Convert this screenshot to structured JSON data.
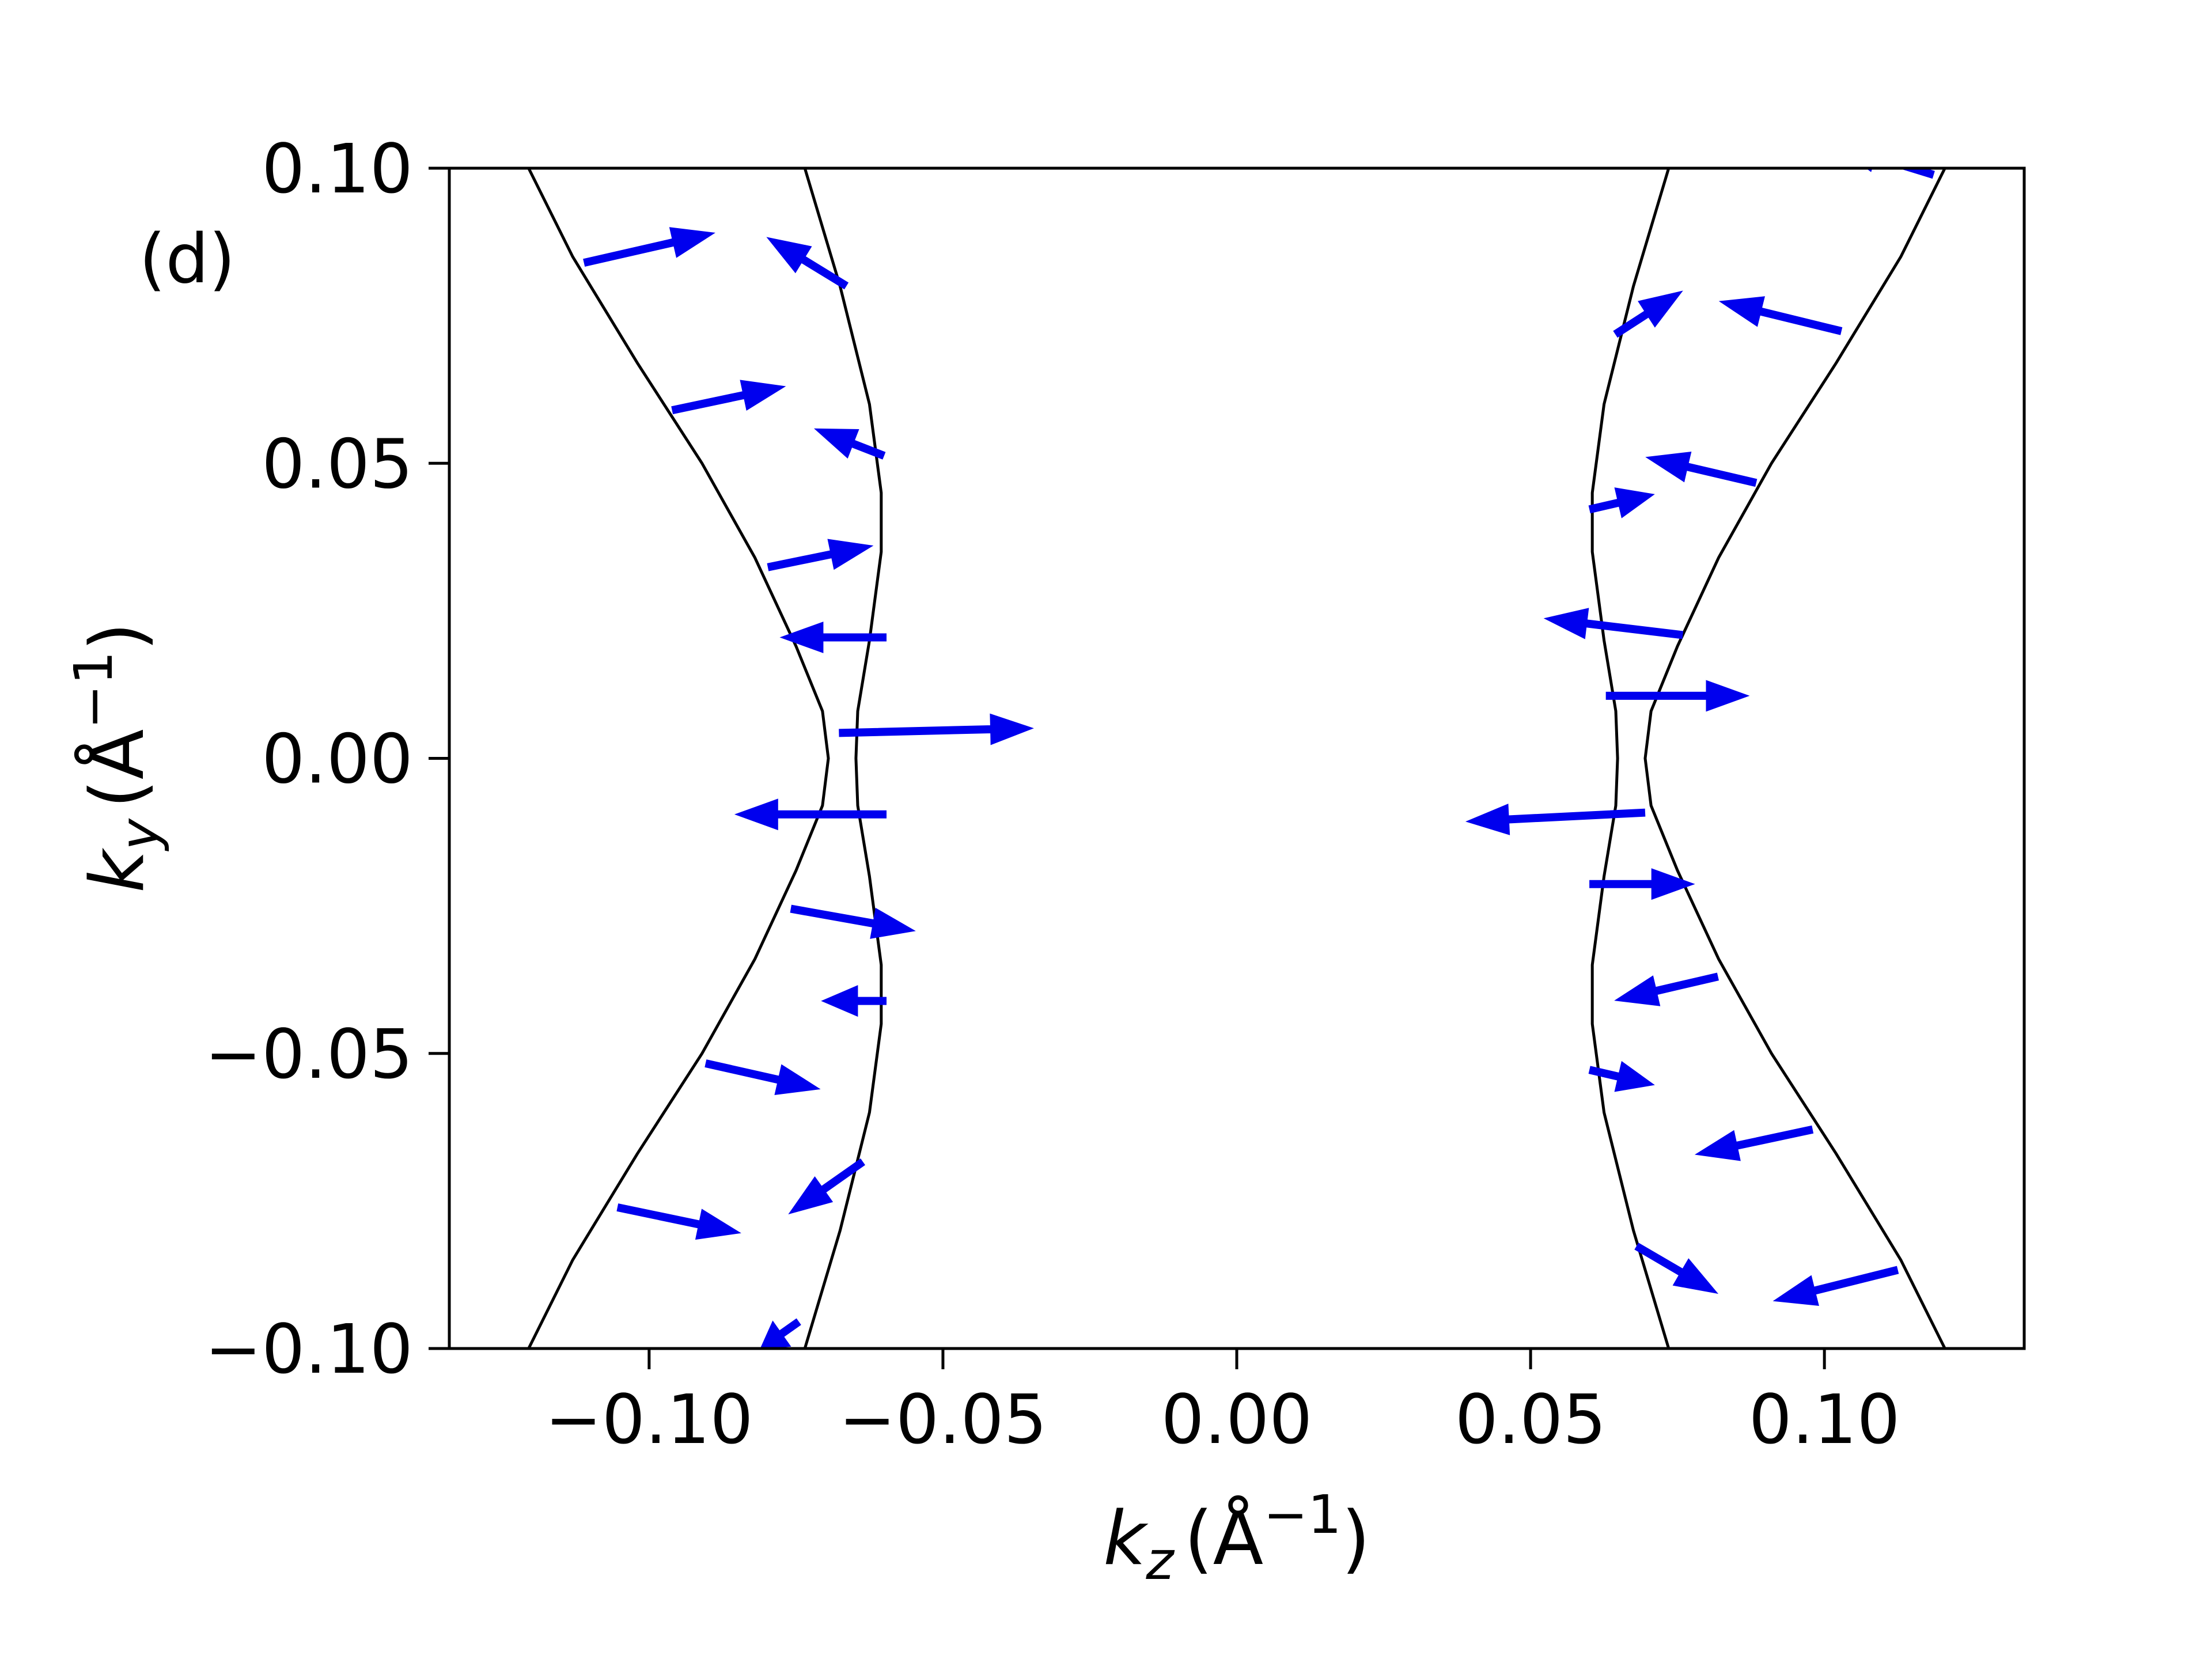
{
  "chart_data": {
    "type": "quiver",
    "panel_label": "(d)",
    "xlim": [
      -0.134,
      0.134
    ],
    "ylim": [
      -0.1,
      0.1
    ],
    "x_ticks": [
      -0.1,
      -0.05,
      0.0,
      0.05,
      0.1
    ],
    "y_ticks": [
      -0.1,
      -0.05,
      0.0,
      0.05,
      0.1
    ],
    "x_tick_labels": [
      "−0.10",
      "−0.05",
      "0.00",
      "0.05",
      "0.10"
    ],
    "y_tick_labels": [
      "−0.10",
      "−0.05",
      "0.00",
      "0.05",
      "0.10"
    ],
    "xlabel": {
      "symbol": "k",
      "subscript": "z",
      "units": "(Å",
      "exponent": "−1",
      "close": ")"
    },
    "ylabel": {
      "symbol": "k",
      "subscript": "y",
      "units": "(Å",
      "exponent": "−1",
      "close": ")"
    },
    "grid": false,
    "curve_color": "#000000",
    "arrow_color": "#0000ee",
    "curves": [
      {
        "name": "left-outer",
        "points": [
          [
            -0.1205,
            0.1
          ],
          [
            -0.113,
            0.085
          ],
          [
            -0.102,
            0.067
          ],
          [
            -0.091,
            0.05
          ],
          [
            -0.082,
            0.034
          ],
          [
            -0.075,
            0.019
          ],
          [
            -0.0705,
            0.008
          ],
          [
            -0.0695,
            0.0
          ],
          [
            -0.0705,
            -0.008
          ],
          [
            -0.075,
            -0.019
          ],
          [
            -0.082,
            -0.034
          ],
          [
            -0.091,
            -0.05
          ],
          [
            -0.102,
            -0.067
          ],
          [
            -0.113,
            -0.085
          ],
          [
            -0.1205,
            -0.1
          ]
        ]
      },
      {
        "name": "left-inner",
        "points": [
          [
            -0.0735,
            0.1
          ],
          [
            -0.0675,
            0.08
          ],
          [
            -0.0625,
            0.06
          ],
          [
            -0.0605,
            0.045
          ],
          [
            -0.0605,
            0.035
          ],
          [
            -0.0625,
            0.02
          ],
          [
            -0.0645,
            0.008
          ],
          [
            -0.0648,
            0.0
          ],
          [
            -0.0645,
            -0.008
          ],
          [
            -0.0625,
            -0.02
          ],
          [
            -0.0605,
            -0.035
          ],
          [
            -0.0605,
            -0.045
          ],
          [
            -0.0625,
            -0.06
          ],
          [
            -0.0675,
            -0.08
          ],
          [
            -0.0735,
            -0.1
          ]
        ]
      },
      {
        "name": "right-inner",
        "points": [
          [
            0.0735,
            0.1
          ],
          [
            0.0675,
            0.08
          ],
          [
            0.0625,
            0.06
          ],
          [
            0.0605,
            0.045
          ],
          [
            0.0605,
            0.035
          ],
          [
            0.0625,
            0.02
          ],
          [
            0.0645,
            0.008
          ],
          [
            0.0648,
            0.0
          ],
          [
            0.0645,
            -0.008
          ],
          [
            0.0625,
            -0.02
          ],
          [
            0.0605,
            -0.035
          ],
          [
            0.0605,
            -0.045
          ],
          [
            0.0625,
            -0.06
          ],
          [
            0.0675,
            -0.08
          ],
          [
            0.0735,
            -0.1
          ]
        ]
      },
      {
        "name": "right-outer",
        "points": [
          [
            0.1205,
            0.1
          ],
          [
            0.113,
            0.085
          ],
          [
            0.102,
            0.067
          ],
          [
            0.091,
            0.05
          ],
          [
            0.082,
            0.034
          ],
          [
            0.075,
            0.019
          ],
          [
            0.0705,
            0.008
          ],
          [
            0.0695,
            0.0
          ],
          [
            0.0705,
            -0.008
          ],
          [
            0.075,
            -0.019
          ],
          [
            0.082,
            -0.034
          ],
          [
            0.091,
            -0.05
          ],
          [
            0.102,
            -0.067
          ],
          [
            0.113,
            -0.085
          ],
          [
            0.1205,
            -0.1
          ]
        ]
      }
    ],
    "arrows": [
      {
        "x": -0.111,
        "y": 0.084,
        "dx": 0.022,
        "dy": 0.005
      },
      {
        "x": -0.096,
        "y": 0.059,
        "dx": 0.019,
        "dy": 0.004
      },
      {
        "x": -0.0797,
        "y": 0.0324,
        "dx": 0.0176,
        "dy": 0.0036
      },
      {
        "x": -0.0597,
        "y": 0.0205,
        "dx": -0.0178,
        "dy": 0.0
      },
      {
        "x": -0.0676,
        "y": 0.0043,
        "dx": 0.0328,
        "dy": 0.0008
      },
      {
        "x": -0.0597,
        "y": -0.0095,
        "dx": -0.0255,
        "dy": 0.0
      },
      {
        "x": -0.0758,
        "y": -0.0255,
        "dx": 0.0209,
        "dy": -0.0037
      },
      {
        "x": -0.0597,
        "y": -0.0411,
        "dx": -0.0108,
        "dy": 0.0
      },
      {
        "x": -0.0903,
        "y": -0.0517,
        "dx": 0.0192,
        "dy": -0.0043
      },
      {
        "x": -0.0637,
        "y": -0.0684,
        "dx": -0.0124,
        "dy": -0.0087
      },
      {
        "x": -0.1053,
        "y": -0.0761,
        "dx": 0.0207,
        "dy": -0.0043
      },
      {
        "x": -0.0746,
        "y": -0.0955,
        "dx": -0.0064,
        "dy": -0.0045
      },
      {
        "x": -0.0665,
        "y": 0.0801,
        "dx": -0.0133,
        "dy": 0.0081
      },
      {
        "x": -0.0601,
        "y": 0.0513,
        "dx": -0.0116,
        "dy": 0.0045
      },
      {
        "x": 0.0645,
        "y": 0.0719,
        "dx": 0.0112,
        "dy": 0.0072
      },
      {
        "x": 0.0601,
        "y": 0.0422,
        "dx": 0.0108,
        "dy": 0.0025
      },
      {
        "x": 0.0758,
        "y": 0.0209,
        "dx": -0.0233,
        "dy": 0.0028
      },
      {
        "x": 0.0629,
        "y": 0.0106,
        "dx": 0.0241,
        "dy": 0.0
      },
      {
        "x": 0.0694,
        "y": -0.0092,
        "dx": -0.0302,
        "dy": -0.0015
      },
      {
        "x": 0.0601,
        "y": -0.0213,
        "dx": 0.0176,
        "dy": 0.0
      },
      {
        "x": 0.0818,
        "y": -0.037,
        "dx": -0.0173,
        "dy": -0.004
      },
      {
        "x": 0.0601,
        "y": -0.0528,
        "dx": 0.0108,
        "dy": -0.0025
      },
      {
        "x": 0.0979,
        "y": -0.0629,
        "dx": -0.0197,
        "dy": -0.0042
      },
      {
        "x": 0.0681,
        "y": -0.0827,
        "dx": 0.0136,
        "dy": -0.0079
      },
      {
        "x": 0.1124,
        "y": -0.0867,
        "dx": -0.0209,
        "dy": -0.0052
      },
      {
        "x": 0.1028,
        "y": 0.0724,
        "dx": -0.0205,
        "dy": 0.005
      },
      {
        "x": 0.0883,
        "y": 0.0467,
        "dx": -0.0185,
        "dy": 0.0043
      },
      {
        "x": 0.1185,
        "y": 0.0989,
        "dx": -0.0166,
        "dy": 0.0051
      }
    ]
  }
}
